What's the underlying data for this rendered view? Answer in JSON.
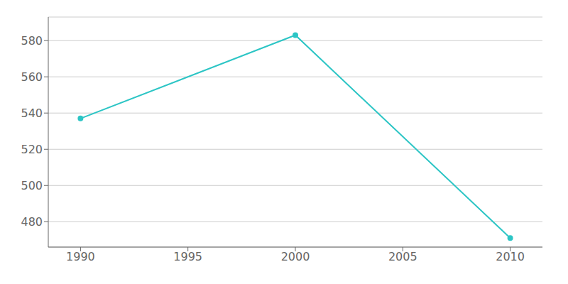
{
  "chart_data": {
    "type": "line",
    "x": [
      1990,
      2000,
      2010
    ],
    "values": [
      537,
      583,
      471
    ],
    "color": "#2cc5c5",
    "marker": "circle",
    "xlim": [
      1988.5,
      2011.5
    ],
    "ylim": [
      466,
      593
    ],
    "xticks": [
      1990,
      1995,
      2000,
      2005,
      2010
    ],
    "yticks": [
      480,
      500,
      520,
      540,
      560,
      580
    ],
    "grid": "y"
  }
}
